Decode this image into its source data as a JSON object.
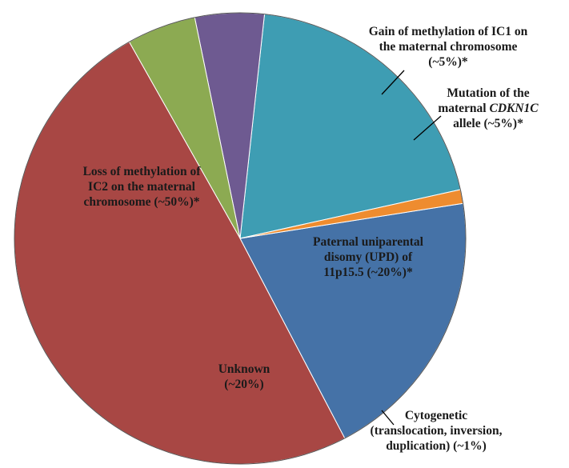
{
  "chart_data": {
    "type": "pie",
    "slices": [
      {
        "key": "loss-ic2",
        "lines": [
          "Loss of methylation of",
          "IC2 on the maternal",
          "chromosome (~50%)*"
        ],
        "value": 50,
        "color": "#a84744"
      },
      {
        "key": "gain-ic1",
        "lines": [
          "Gain of methylation of IC1 on",
          "the maternal chromosome",
          "(~5%)*"
        ],
        "value": 5,
        "color": "#8caa52"
      },
      {
        "key": "cdkn1c",
        "lines": [
          "Mutation of the",
          "maternal |CDKN1C|",
          "allele (~5%)*"
        ],
        "value": 5,
        "color": "#6e5a91"
      },
      {
        "key": "upd",
        "lines": [
          "Paternal uniparental",
          "disomy (UPD) of",
          "11p15.5 (~20%)*"
        ],
        "value": 20,
        "color": "#3e9db3"
      },
      {
        "key": "cytogenetic",
        "lines": [
          "Cytogenetic",
          "(translocation, inversion,",
          "duplication) (~1%)"
        ],
        "value": 1,
        "color": "#ee8c2f"
      },
      {
        "key": "unknown",
        "lines": [
          "Unknown",
          "(~20%)"
        ],
        "value": 20,
        "color": "#4572a7"
      }
    ]
  }
}
